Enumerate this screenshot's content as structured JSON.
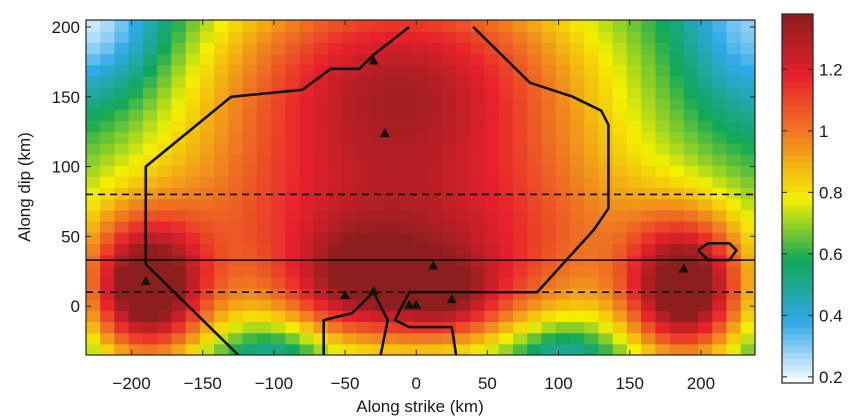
{
  "chart_data": {
    "type": "heatmap",
    "xlabel": "Along strike (km)",
    "ylabel": "Along dip (km)",
    "xlim": [
      -232,
      238
    ],
    "ylim": [
      -35,
      205
    ],
    "xticks": [
      -200,
      -150,
      -100,
      -50,
      0,
      50,
      100,
      150,
      200
    ],
    "yticks": [
      0,
      50,
      100,
      150,
      200
    ],
    "colorbar": {
      "range": [
        0.18,
        1.38
      ],
      "ticks": [
        0.2,
        0.4,
        0.6,
        0.8,
        1,
        1.2
      ],
      "tick_labels": [
        "0.2",
        "0.4",
        "0.6",
        "0.8",
        "1",
        "1.2"
      ]
    },
    "grid": false,
    "heatmap_blobs": [
      {
        "x": -10,
        "y": 170,
        "sx": 95,
        "sy": 60,
        "amp": 0.55
      },
      {
        "x": -20,
        "y": 100,
        "sx": 130,
        "sy": 80,
        "amp": 0.35
      },
      {
        "x": 0,
        "y": 10,
        "sx": 90,
        "sy": 35,
        "amp": 0.4
      },
      {
        "x": -190,
        "y": 10,
        "sx": 30,
        "sy": 35,
        "amp": 0.85
      },
      {
        "x": 190,
        "y": 10,
        "sx": 30,
        "sy": 35,
        "amp": 0.85
      },
      {
        "x": -40,
        "y": 15,
        "sx": 30,
        "sy": 25,
        "amp": 0.25
      },
      {
        "x": 20,
        "y": 5,
        "sx": 25,
        "sy": 20,
        "amp": 0.25
      },
      {
        "x": 0,
        "y": 60,
        "sx": 200,
        "sy": 40,
        "amp": 0.25
      }
    ],
    "heatmap_base": 0.5,
    "contours": [
      [
        [
          -125,
          -35
        ],
        [
          -170,
          10
        ],
        [
          -185,
          25
        ],
        [
          -190,
          30
        ],
        [
          -190,
          100
        ],
        [
          -130,
          150
        ],
        [
          -80,
          155
        ],
        [
          -60,
          170
        ],
        [
          -40,
          170
        ],
        [
          -30,
          180
        ],
        [
          -5,
          200
        ]
      ],
      [
        [
          40,
          200
        ],
        [
          80,
          160
        ],
        [
          110,
          150
        ],
        [
          130,
          140
        ],
        [
          135,
          130
        ],
        [
          135,
          70
        ],
        [
          125,
          55
        ],
        [
          85,
          10
        ],
        [
          -5,
          10
        ],
        [
          -15,
          -10
        ],
        [
          -5,
          -15
        ],
        [
          25,
          -15
        ],
        [
          28,
          -35
        ]
      ],
      [
        [
          -65,
          -35
        ],
        [
          -65,
          -10
        ],
        [
          -45,
          -5
        ],
        [
          -30,
          10
        ],
        [
          -20,
          -10
        ],
        [
          -25,
          -35
        ]
      ],
      [
        [
          198,
          40
        ],
        [
          205,
          45
        ],
        [
          220,
          45
        ],
        [
          225,
          40
        ],
        [
          220,
          33
        ],
        [
          205,
          33
        ],
        [
          198,
          40
        ]
      ]
    ],
    "solid_lines": [
      33
    ],
    "dashed_lines": [
      80,
      10
    ],
    "markers": [
      {
        "x": -30,
        "y": 176
      },
      {
        "x": -22,
        "y": 124
      },
      {
        "x": 12,
        "y": 29
      },
      {
        "x": -50,
        "y": 8
      },
      {
        "x": -30,
        "y": 11
      },
      {
        "x": -5,
        "y": 1
      },
      {
        "x": 0,
        "y": 1
      },
      {
        "x": 25,
        "y": 5
      },
      {
        "x": -190,
        "y": 18
      },
      {
        "x": 188,
        "y": 27
      }
    ],
    "colors": {
      "colormap": [
        "#ffffff",
        "#2fa8e8",
        "#10a858",
        "#f5f000",
        "#f08020",
        "#e8202c",
        "#8c1e1e"
      ],
      "line": "#111111",
      "marker": "#111111"
    }
  }
}
